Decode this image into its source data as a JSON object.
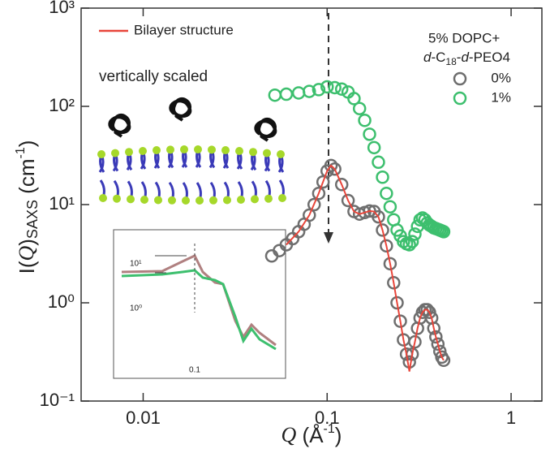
{
  "chart_data": {
    "type": "scatter",
    "xlabel": [
      "Q",
      " (Å",
      "-1",
      ")"
    ],
    "ylabel": [
      "I(",
      "Q",
      ")",
      "SAXS",
      " (cm",
      "-1",
      ")"
    ],
    "annotations": [
      "vertically scaled"
    ],
    "legend_title": [
      "5% DOPC+",
      "d",
      "-C",
      "18",
      "-",
      "d",
      "-PEO4"
    ],
    "log_x": true,
    "log_y": true,
    "xlim": [
      0.0046,
      1.47
    ],
    "ylim": [
      0.1,
      1000
    ],
    "xticks": [
      0.01,
      0.1,
      1
    ],
    "yticks": [
      {
        "value": 0.1,
        "label": "10⁻¹"
      },
      {
        "value": 1,
        "label": "10⁰"
      },
      {
        "value": 10,
        "label": "10¹"
      },
      {
        "value": 100,
        "label": "10²"
      },
      {
        "value": 1000,
        "label": "10³"
      }
    ],
    "series": [
      {
        "name": "0%",
        "color": "#6e6e6e",
        "style": "marker",
        "x": [
          0.05,
          0.055,
          0.06,
          0.065,
          0.07,
          0.075,
          0.08,
          0.085,
          0.09,
          0.095,
          0.1,
          0.105,
          0.11,
          0.12,
          0.13,
          0.14,
          0.15,
          0.16,
          0.17,
          0.18,
          0.19,
          0.2,
          0.21,
          0.22,
          0.23,
          0.24,
          0.25,
          0.26,
          0.27,
          0.28,
          0.29,
          0.3,
          0.31,
          0.32,
          0.33,
          0.34,
          0.35,
          0.36,
          0.37,
          0.38,
          0.39,
          0.4,
          0.41,
          0.42,
          0.43
        ],
        "values": [
          3.0,
          3.4,
          3.9,
          4.5,
          5.3,
          6.3,
          7.8,
          10,
          13,
          17,
          22,
          25,
          23,
          16,
          11,
          8.5,
          8.0,
          8.3,
          8.6,
          8.5,
          7.5,
          5.5,
          3.8,
          2.5,
          1.6,
          1.0,
          0.65,
          0.42,
          0.3,
          0.25,
          0.3,
          0.4,
          0.55,
          0.7,
          0.8,
          0.85,
          0.85,
          0.8,
          0.7,
          0.55,
          0.45,
          0.38,
          0.32,
          0.28,
          0.26
        ]
      },
      {
        "name": "1%",
        "color": "#3dbf6e",
        "style": "marker",
        "x": [
          0.052,
          0.06,
          0.07,
          0.08,
          0.09,
          0.1,
          0.11,
          0.12,
          0.13,
          0.14,
          0.15,
          0.16,
          0.17,
          0.18,
          0.19,
          0.2,
          0.21,
          0.22,
          0.23,
          0.24,
          0.25,
          0.26,
          0.27,
          0.28,
          0.29,
          0.3,
          0.31,
          0.32,
          0.33,
          0.34,
          0.35,
          0.36,
          0.37,
          0.38,
          0.39,
          0.4,
          0.41,
          0.42,
          0.43
        ],
        "values": [
          130,
          133,
          137,
          142,
          148,
          158,
          155,
          150,
          140,
          120,
          95,
          72,
          52,
          38,
          27,
          19,
          13,
          9.5,
          7,
          5.5,
          4.8,
          4.2,
          4.0,
          3.9,
          4.2,
          5,
          6,
          7,
          7.3,
          7,
          6.5,
          6.2,
          6,
          5.8,
          5.7,
          5.6,
          5.5,
          5.4,
          5.3
        ]
      },
      {
        "name": "Bilayer structure",
        "color": "#e8453a",
        "style": "line",
        "x": [
          0.06,
          0.07,
          0.08,
          0.09,
          0.1,
          0.105,
          0.11,
          0.12,
          0.13,
          0.14,
          0.15,
          0.16,
          0.17,
          0.18,
          0.19,
          0.2,
          0.21,
          0.22,
          0.23,
          0.24,
          0.25,
          0.26,
          0.27,
          0.28,
          0.29,
          0.3,
          0.31,
          0.32,
          0.33,
          0.34,
          0.35,
          0.36,
          0.37,
          0.38,
          0.39,
          0.4,
          0.41,
          0.42,
          0.43
        ],
        "values": [
          3.9,
          5.3,
          7.8,
          13,
          22,
          25,
          23,
          16,
          11,
          8.5,
          8.0,
          8.3,
          8.6,
          8.5,
          7.5,
          5.5,
          3.8,
          2.5,
          1.6,
          1.0,
          0.65,
          0.42,
          0.3,
          0.2,
          0.3,
          0.4,
          0.55,
          0.7,
          0.8,
          0.85,
          0.85,
          0.8,
          0.7,
          0.55,
          0.45,
          0.38,
          0.32,
          0.28,
          0.26
        ]
      }
    ]
  },
  "inset": {
    "yticks": [
      "10¹",
      "10⁰"
    ],
    "xtick": "0.1"
  }
}
